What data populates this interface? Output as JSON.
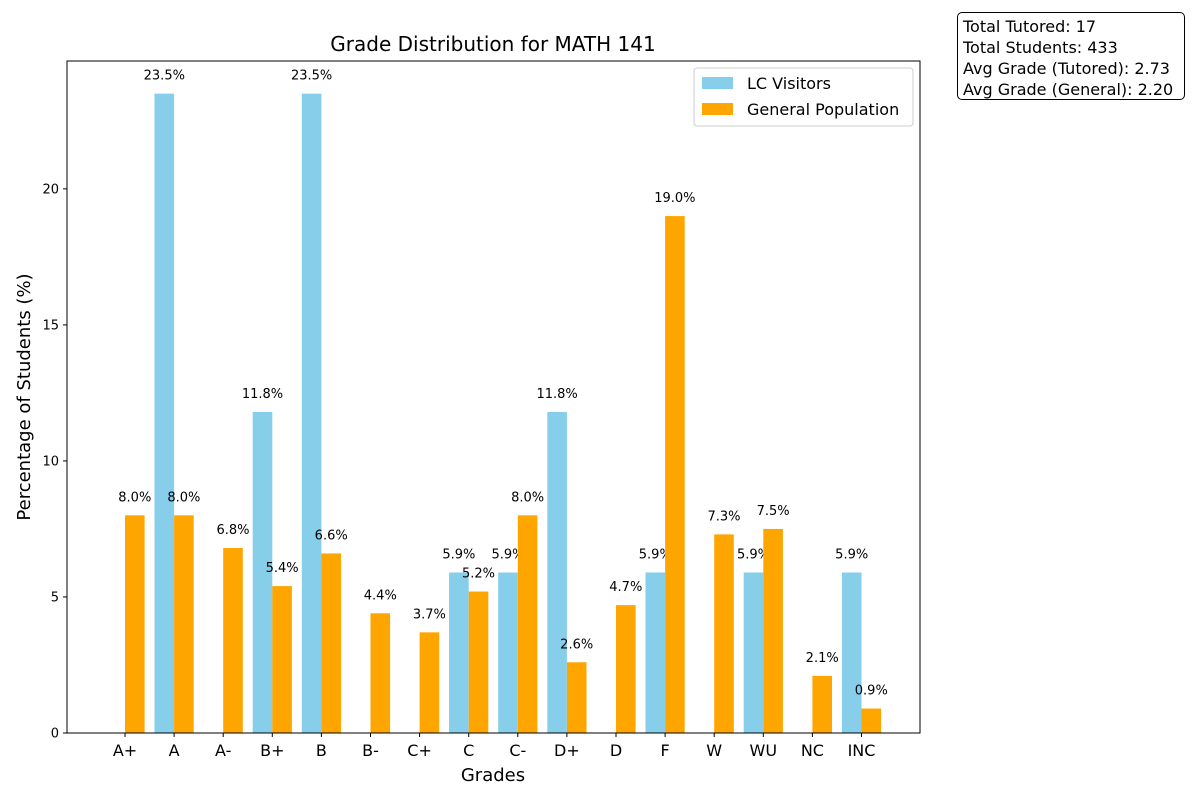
{
  "chart_data": {
    "type": "bar",
    "title": "Grade Distribution for MATH 141",
    "xlabel": "Grades",
    "ylabel": "Percentage of Students (%)",
    "ylim": [
      0,
      24.7
    ],
    "yticks": [
      0,
      5,
      10,
      15,
      20
    ],
    "grid": false,
    "legend_position": "top-right",
    "categories": [
      "A+",
      "A",
      "A-",
      "B+",
      "B",
      "B-",
      "C+",
      "C",
      "C-",
      "D+",
      "D",
      "F",
      "W",
      "WU",
      "NC",
      "INC"
    ],
    "series": [
      {
        "name": "LC Visitors",
        "color": "#87ceeb",
        "values": [
          0,
          23.5,
          0,
          11.8,
          23.5,
          0,
          0,
          5.9,
          5.9,
          11.8,
          0,
          5.9,
          0,
          5.9,
          0,
          5.9
        ],
        "labels": [
          "",
          "23.5%",
          "",
          "11.8%",
          "23.5%",
          "",
          "",
          "5.9%",
          "5.9%",
          "11.8%",
          "",
          "5.9%",
          "",
          "5.9%",
          "",
          "5.9%"
        ]
      },
      {
        "name": "General Population",
        "color": "#ffa500",
        "values": [
          8.0,
          8.0,
          6.8,
          5.4,
          6.6,
          4.4,
          3.7,
          5.2,
          8.0,
          2.6,
          4.7,
          19.0,
          7.3,
          7.5,
          2.1,
          0.9
        ],
        "labels": [
          "8.0%",
          "8.0%",
          "6.8%",
          "5.4%",
          "6.6%",
          "4.4%",
          "3.7%",
          "5.2%",
          "8.0%",
          "2.6%",
          "4.7%",
          "19.0%",
          "7.3%",
          "7.5%",
          "2.1%",
          "0.9%"
        ]
      }
    ]
  },
  "stats": {
    "total_tutored": "Total Tutored: 17",
    "total_students": "Total Students: 433",
    "avg_tutored": "Avg Grade (Tutored): 2.73",
    "avg_general": "Avg Grade (General): 2.20"
  }
}
